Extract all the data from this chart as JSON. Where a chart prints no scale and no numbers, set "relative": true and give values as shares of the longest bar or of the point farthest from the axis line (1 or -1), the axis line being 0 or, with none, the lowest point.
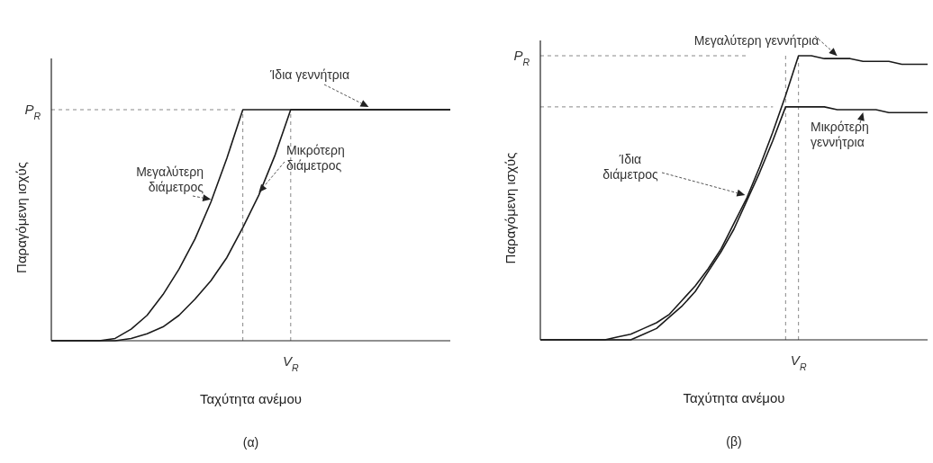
{
  "chart_data": [
    {
      "type": "line",
      "title": "(α)",
      "xlabel": "Ταχύτητα ανέμου",
      "ylabel": "Παραγόμενη ισχύς",
      "relative": true,
      "line_style": "solid",
      "categories": [
        null,
        null,
        null,
        null,
        null,
        null,
        null,
        null,
        null,
        null,
        null,
        null,
        null,
        null,
        null,
        null,
        null,
        null,
        null,
        null,
        null,
        null,
        null,
        null,
        null,
        null
      ],
      "series": [
        {
          "name": "Μεγαλύτερη διάμετρος",
          "color": "#1a1a1a",
          "values": [
            0,
            0,
            0,
            0,
            0.01,
            0.05,
            0.11,
            0.2,
            0.31,
            0.44,
            0.6,
            0.79,
            1,
            1,
            1,
            1,
            1,
            1,
            1,
            1,
            1,
            1,
            1,
            1,
            1,
            1
          ]
        },
        {
          "name": "Μικρότερη διάμετρος",
          "color": "#1a1a1a",
          "values": [
            0,
            0,
            0,
            0,
            0,
            0.01,
            0.03,
            0.06,
            0.11,
            0.18,
            0.26,
            0.36,
            0.49,
            0.63,
            0.8,
            1,
            1,
            1,
            1,
            1,
            1,
            1,
            1,
            1,
            1,
            1
          ]
        }
      ],
      "annotations": [
        "Ίδια γεννήτρια"
      ],
      "ref_lines": [
        {
          "axis": "y",
          "value": 1,
          "label": "P$_{R}$",
          "line_style": "dashed",
          "color": "#888888"
        },
        {
          "axis": "x",
          "label": null,
          "line_style": "dashed",
          "color": "#888888"
        },
        {
          "axis": "x",
          "label": "V$_{R}$",
          "line_style": "dashed",
          "color": "#888888"
        }
      ]
    },
    {
      "type": "line",
      "title": "(β)",
      "xlabel": "Ταχύτητα ανέμου",
      "ylabel": "Παραγόμενη ισχύς",
      "relative": true,
      "line_style": "solid",
      "categories": [
        null,
        null,
        null,
        null,
        null,
        null,
        null,
        null,
        null,
        null,
        null,
        null,
        null,
        null,
        null,
        null,
        null,
        null,
        null,
        null,
        null,
        null,
        null,
        null,
        null,
        null,
        null,
        null,
        null,
        null,
        null
      ],
      "series": [
        {
          "name": "Μεγαλύτερη γεννήτρια",
          "color": "#1a1a1a",
          "values": [
            0,
            0,
            0,
            0,
            0,
            0,
            0.01,
            0.02,
            0.04,
            0.06,
            0.09,
            0.14,
            0.19,
            0.25,
            0.32,
            0.41,
            0.5,
            0.61,
            0.73,
            0.86,
            1,
            1,
            0.99,
            0.99,
            0.99,
            0.98,
            0.98,
            0.98,
            0.97,
            0.97,
            0.97
          ]
        },
        {
          "name": "Μικρότερη γεννήτρια",
          "color": "#1a1a1a",
          "values": [
            0,
            0,
            0,
            0,
            0,
            0,
            0,
            0,
            0.02,
            0.04,
            0.08,
            0.12,
            0.17,
            0.24,
            0.31,
            0.39,
            0.49,
            0.59,
            0.7,
            0.82,
            0.82,
            0.82,
            0.82,
            0.81,
            0.81,
            0.81,
            0.81,
            0.8,
            0.8,
            0.8,
            0.8
          ]
        }
      ],
      "annotations": [
        "Ίδια διάμετρος"
      ],
      "ref_lines": [
        {
          "axis": "y",
          "value": 1,
          "label": "P$_{R}$",
          "line_style": "dashed",
          "color": "#888888"
        },
        {
          "axis": "y",
          "value": 0.82,
          "label": null,
          "line_style": "dashed",
          "color": "#888888"
        },
        {
          "axis": "x",
          "label": null,
          "line_style": "dashed",
          "color": "#888888"
        },
        {
          "axis": "x",
          "label": "V$_{R}$",
          "line_style": "dashed",
          "color": "#888888"
        }
      ]
    }
  ]
}
